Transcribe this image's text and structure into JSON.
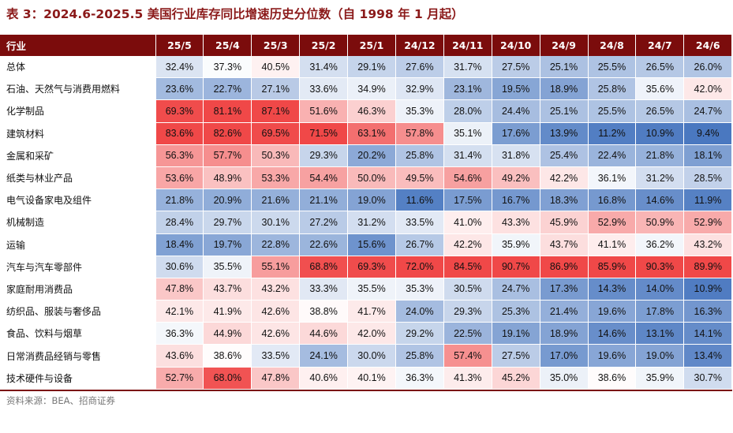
{
  "title": "表 3：2024.6-2025.5 美国行业库存同比增速历史分位数（自 1998 年 1 月起）",
  "source": "资料来源：BEA、招商证券",
  "colors": {
    "header_bg": "#7b0c0c",
    "high": "#f04848",
    "mid": "#ffffff",
    "low": "#4a78c0"
  },
  "table": {
    "corner_label": "行业",
    "columns": [
      "25/5",
      "25/4",
      "25/3",
      "25/2",
      "25/1",
      "24/12",
      "24/11",
      "24/10",
      "24/9",
      "24/8",
      "24/7",
      "24/6"
    ],
    "rows": [
      {
        "label": "总体",
        "values": [
          "32.4%",
          "37.3%",
          "40.5%",
          "31.4%",
          "29.1%",
          "27.6%",
          "31.7%",
          "27.5%",
          "25.1%",
          "25.5%",
          "26.5%",
          "26.0%"
        ]
      },
      {
        "label": "石油、天然气与消费用燃料",
        "values": [
          "23.6%",
          "22.7%",
          "27.1%",
          "33.6%",
          "34.9%",
          "32.9%",
          "23.1%",
          "19.5%",
          "18.9%",
          "25.8%",
          "35.6%",
          "42.0%"
        ]
      },
      {
        "label": "化学制品",
        "values": [
          "69.3%",
          "81.1%",
          "87.1%",
          "51.6%",
          "46.3%",
          "35.3%",
          "28.0%",
          "24.4%",
          "25.1%",
          "25.5%",
          "26.5%",
          "24.7%"
        ]
      },
      {
        "label": "建筑材料",
        "values": [
          "83.6%",
          "82.6%",
          "69.5%",
          "71.5%",
          "63.1%",
          "57.8%",
          "35.1%",
          "17.6%",
          "13.9%",
          "11.2%",
          "10.9%",
          "9.4%"
        ]
      },
      {
        "label": "金属和采矿",
        "values": [
          "56.3%",
          "57.7%",
          "50.3%",
          "29.3%",
          "20.2%",
          "25.8%",
          "31.4%",
          "31.8%",
          "25.4%",
          "22.4%",
          "21.8%",
          "18.1%"
        ]
      },
      {
        "label": "纸类与林业产品",
        "values": [
          "53.6%",
          "48.9%",
          "53.3%",
          "54.4%",
          "50.0%",
          "49.5%",
          "54.6%",
          "49.2%",
          "42.2%",
          "36.1%",
          "31.2%",
          "28.5%"
        ]
      },
      {
        "label": "电气设备家电及组件",
        "values": [
          "21.8%",
          "20.9%",
          "21.6%",
          "21.1%",
          "19.0%",
          "11.6%",
          "17.5%",
          "16.7%",
          "18.3%",
          "16.8%",
          "14.6%",
          "11.9%"
        ]
      },
      {
        "label": "机械制造",
        "values": [
          "28.4%",
          "29.7%",
          "30.1%",
          "27.2%",
          "31.2%",
          "33.5%",
          "41.0%",
          "43.3%",
          "45.9%",
          "52.9%",
          "50.9%",
          "52.9%"
        ]
      },
      {
        "label": "运输",
        "values": [
          "18.4%",
          "19.7%",
          "22.8%",
          "22.6%",
          "15.6%",
          "26.7%",
          "42.2%",
          "35.9%",
          "43.7%",
          "41.1%",
          "36.2%",
          "43.2%"
        ]
      },
      {
        "label": "汽车与汽车零部件",
        "values": [
          "30.6%",
          "35.5%",
          "55.1%",
          "68.8%",
          "69.3%",
          "72.0%",
          "84.5%",
          "90.7%",
          "86.9%",
          "85.9%",
          "90.3%",
          "89.9%"
        ]
      },
      {
        "label": "家庭耐用消费品",
        "values": [
          "47.8%",
          "43.7%",
          "43.2%",
          "33.3%",
          "35.5%",
          "35.3%",
          "30.5%",
          "24.7%",
          "17.3%",
          "14.3%",
          "14.0%",
          "10.9%"
        ]
      },
      {
        "label": "纺织品、服装与奢侈品",
        "values": [
          "42.1%",
          "41.9%",
          "42.6%",
          "38.8%",
          "41.7%",
          "24.0%",
          "29.3%",
          "25.3%",
          "21.4%",
          "19.6%",
          "17.8%",
          "16.3%"
        ]
      },
      {
        "label": "食品、饮料与烟草",
        "values": [
          "36.3%",
          "44.9%",
          "42.6%",
          "44.6%",
          "42.0%",
          "29.2%",
          "22.5%",
          "19.1%",
          "18.9%",
          "14.6%",
          "13.1%",
          "14.1%"
        ]
      },
      {
        "label": "日常消费品经销与零售",
        "values": [
          "43.6%",
          "38.6%",
          "33.5%",
          "24.1%",
          "30.0%",
          "25.8%",
          "57.4%",
          "27.5%",
          "17.0%",
          "19.6%",
          "19.0%",
          "13.4%"
        ]
      },
      {
        "label": "技术硬件与设备",
        "values": [
          "52.7%",
          "68.0%",
          "47.8%",
          "40.6%",
          "40.1%",
          "36.3%",
          "41.3%",
          "45.2%",
          "35.0%",
          "38.6%",
          "35.9%",
          "30.7%"
        ]
      }
    ]
  }
}
